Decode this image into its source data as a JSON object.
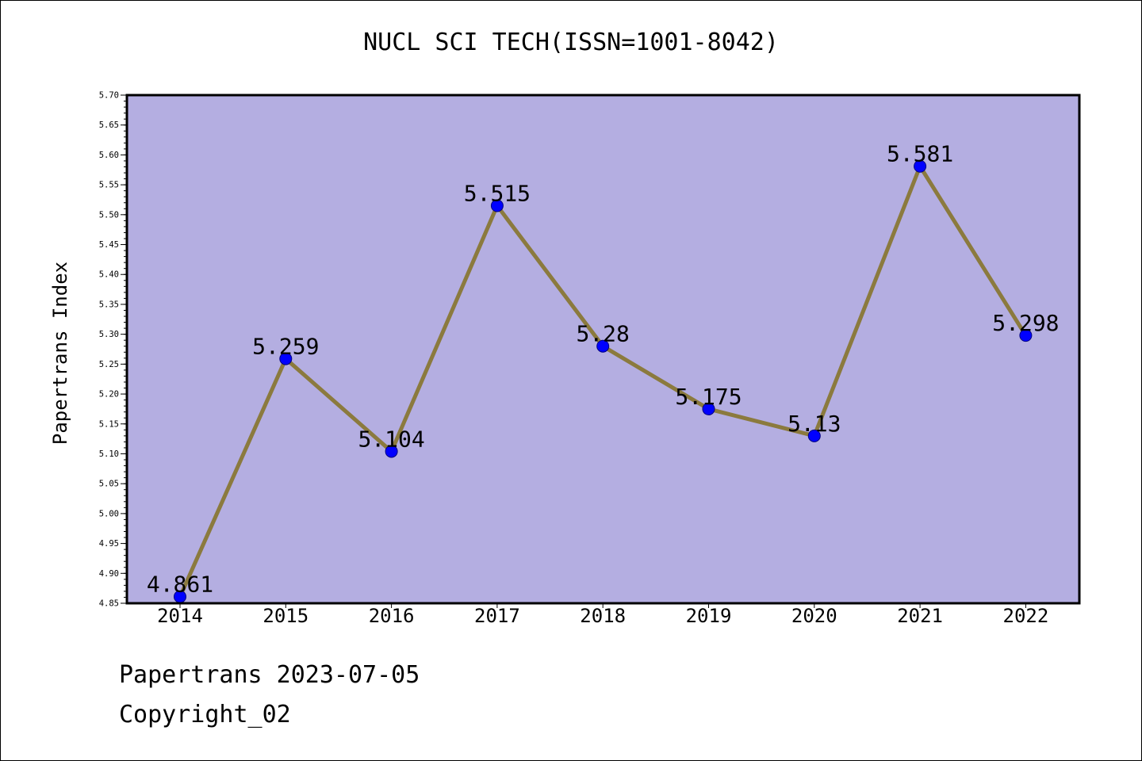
{
  "chart_data": {
    "type": "line",
    "title": "NUCL SCI TECH(ISSN=1001-8042)",
    "xlabel": "",
    "ylabel": "Papertrans Index",
    "categories": [
      "2014",
      "2015",
      "2016",
      "2017",
      "2018",
      "2019",
      "2020",
      "2021",
      "2022"
    ],
    "series": [
      {
        "values": [
          4.861,
          5.259,
          5.104,
          5.515,
          5.28,
          5.175,
          5.13,
          5.581,
          5.298
        ],
        "labels": [
          "4.861",
          "5.259",
          "5.104",
          "5.515",
          "5.28",
          "5.175",
          "5.13",
          "5.581",
          "5.298"
        ]
      }
    ],
    "ylim": [
      4.85,
      5.7
    ],
    "yticks": [
      "4.85",
      "4.90",
      "4.95",
      "5.00",
      "5.05",
      "5.10",
      "5.15",
      "5.20",
      "5.25",
      "5.30",
      "5.35",
      "5.40",
      "5.45",
      "5.50",
      "5.55",
      "5.60",
      "5.65",
      "5.70"
    ],
    "grid": false,
    "legend": "none",
    "colors": {
      "plot_background": "#b4aee1",
      "line": "#8b7a3e",
      "marker": "#0000ff"
    }
  },
  "footer": {
    "line1": "Papertrans 2023-07-05",
    "line2": "Copyright_02"
  }
}
